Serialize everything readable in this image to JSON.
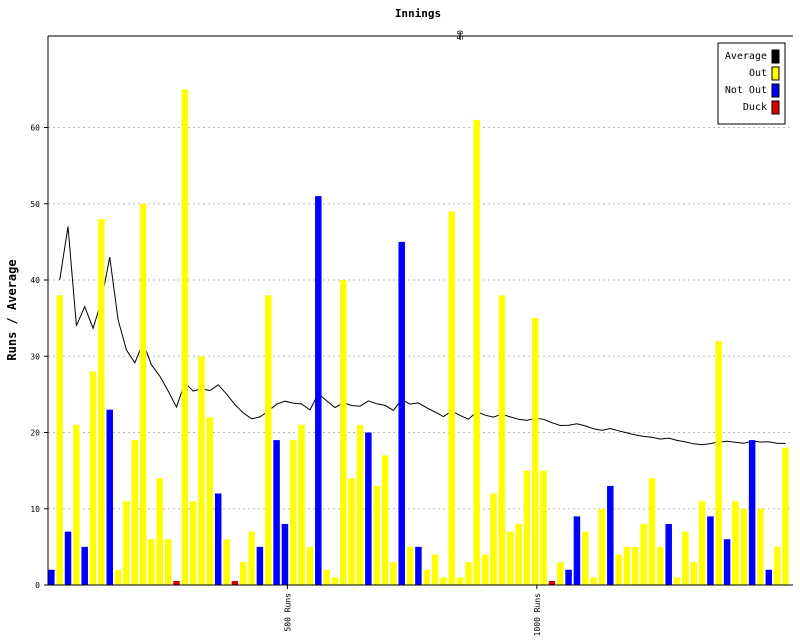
{
  "chart_data": {
    "type": "bar",
    "title": "Innings",
    "y_label": "Runs / Average",
    "x": [
      1,
      2,
      3,
      4,
      5,
      6,
      7,
      8,
      9,
      10,
      11,
      12,
      13,
      14,
      15,
      16,
      17,
      18,
      19,
      20,
      21,
      22,
      23,
      24,
      25,
      26,
      27,
      28,
      29,
      30,
      31,
      32,
      33,
      34,
      35,
      36,
      37,
      38,
      39,
      40,
      41,
      42,
      43,
      44,
      45,
      46,
      47,
      48,
      49,
      50,
      51,
      52,
      53,
      54,
      55,
      56,
      57,
      58,
      59,
      60,
      61,
      62,
      63,
      64,
      65,
      66,
      67,
      68,
      69,
      70,
      71,
      72,
      73,
      74,
      75,
      76,
      77,
      78,
      79,
      80,
      81,
      82,
      83,
      84,
      85,
      86,
      87,
      88,
      89
    ],
    "xlim": [
      0.6,
      89.9
    ],
    "xticks": [
      50
    ],
    "runs_ticks": [
      {
        "value": 29.3,
        "label": "500 Runs"
      },
      {
        "value": 59.2,
        "label": "1000 Runs"
      }
    ],
    "ylim": [
      0,
      72
    ],
    "yticks": [
      0,
      10,
      20,
      30,
      40,
      50,
      60
    ],
    "grid": true,
    "series": [
      {
        "name": "Average",
        "type": "line",
        "color": "#000000",
        "values": [
          null,
          40,
          47,
          34,
          36.5,
          33.67,
          37.25,
          43,
          34.8,
          30.83,
          29.14,
          31.75,
          28.89,
          27.4,
          25.45,
          23.33,
          26.54,
          25.43,
          25.73,
          25.5,
          26.25,
          25.06,
          23.67,
          22.58,
          21.8,
          22.05,
          22.81,
          23.71,
          24.1,
          23.86,
          23.74,
          22.96,
          25.08,
          24.16,
          23.27,
          23.89,
          23.54,
          23.45,
          24.14,
          23.77,
          23.55,
          22.91,
          24.31,
          23.73,
          23.88,
          23.24,
          22.69,
          22.08,
          22.81,
          22.24,
          21.74,
          22.73,
          22.27,
          22.02,
          22.4,
          22.05,
          21.73,
          21.59,
          21.87,
          21.73,
          21.29,
          20.92,
          20.96,
          21.14,
          20.86,
          20.48,
          20.28,
          20.53,
          20.22,
          19.95,
          19.68,
          19.47,
          19.38,
          19.14,
          19.27,
          18.97,
          18.77,
          18.52,
          18.4,
          18.54,
          18.75,
          18.84,
          18.72,
          18.59,
          18.88,
          18.75,
          18.78,
          18.57,
          18.57
        ]
      },
      {
        "name": "Out",
        "type": "bar",
        "color": "#ffff00",
        "values": [
          null,
          38,
          null,
          21,
          null,
          28,
          48,
          null,
          2,
          11,
          19,
          50,
          6,
          14,
          6,
          null,
          65,
          11,
          30,
          22,
          null,
          6,
          null,
          3,
          7,
          null,
          38,
          null,
          null,
          19,
          21,
          5,
          null,
          2,
          1,
          40,
          14,
          21,
          null,
          13,
          17,
          3,
          null,
          5,
          null,
          2,
          4,
          1,
          49,
          1,
          3,
          61,
          4,
          12,
          38,
          7,
          8,
          15,
          35,
          15,
          null,
          3,
          null,
          null,
          7,
          1,
          10,
          null,
          4,
          5,
          5,
          8,
          14,
          5,
          null,
          1,
          7,
          3,
          11,
          null,
          32,
          null,
          11,
          10,
          null,
          10,
          null,
          5,
          18
        ]
      },
      {
        "name": "Not Out",
        "type": "bar",
        "color": "#0000ff",
        "values": [
          2,
          null,
          7,
          null,
          5,
          null,
          null,
          23,
          null,
          null,
          null,
          null,
          null,
          null,
          null,
          null,
          null,
          null,
          null,
          null,
          12,
          null,
          null,
          null,
          null,
          5,
          null,
          19,
          8,
          null,
          null,
          null,
          51,
          null,
          null,
          null,
          null,
          null,
          20,
          null,
          null,
          null,
          45,
          null,
          5,
          null,
          null,
          null,
          null,
          null,
          null,
          null,
          null,
          null,
          null,
          null,
          null,
          null,
          null,
          null,
          null,
          null,
          2,
          9,
          null,
          null,
          null,
          13,
          null,
          null,
          null,
          null,
          null,
          null,
          8,
          null,
          null,
          null,
          null,
          9,
          null,
          6,
          null,
          null,
          19,
          null,
          2,
          null,
          null
        ]
      },
      {
        "name": "Duck",
        "type": "bar",
        "color": "#dd0000",
        "values": [
          null,
          null,
          null,
          null,
          null,
          null,
          null,
          null,
          null,
          null,
          null,
          null,
          null,
          null,
          null,
          0,
          null,
          null,
          null,
          null,
          null,
          null,
          0,
          null,
          null,
          null,
          null,
          null,
          null,
          null,
          null,
          null,
          null,
          null,
          null,
          null,
          null,
          null,
          null,
          null,
          null,
          null,
          null,
          null,
          null,
          null,
          null,
          null,
          null,
          null,
          null,
          null,
          null,
          null,
          null,
          null,
          null,
          null,
          null,
          null,
          0,
          null,
          null,
          null,
          null,
          null,
          null,
          null,
          null,
          null,
          null,
          null,
          null,
          null,
          null,
          null,
          null,
          null,
          null,
          null,
          null,
          null,
          null,
          null,
          null,
          null,
          null,
          null,
          null
        ]
      }
    ]
  }
}
